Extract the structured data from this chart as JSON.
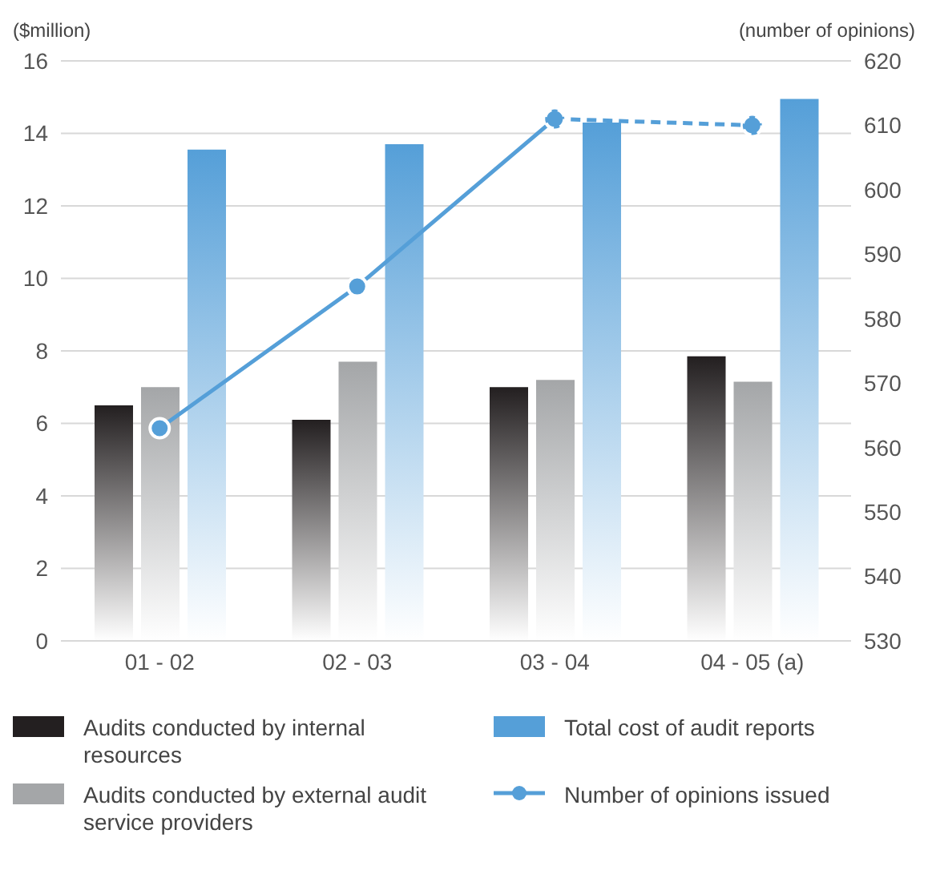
{
  "chart_data": {
    "type": "bar",
    "ylabel": "($million)",
    "y2label": "(number of opinions)",
    "categories": [
      "01 - 02",
      "02 - 03",
      "03 - 04",
      "04 - 05 (a)"
    ],
    "series": [
      {
        "name": "Audits conducted by internal resources",
        "color": "#231f20",
        "values": [
          6.5,
          6.1,
          7.0,
          7.85
        ]
      },
      {
        "name": "Audits conducted by external audit service providers",
        "color": "#a4a6a8",
        "values": [
          7.0,
          7.7,
          7.2,
          7.15
        ]
      },
      {
        "name": "Total cost of audit reports",
        "color": "#559fd8",
        "values": [
          13.55,
          13.7,
          14.3,
          14.95
        ]
      },
      {
        "name": "Number of opinions issued",
        "type": "line",
        "axis": "y2",
        "color": "#559fd8",
        "line_style": "solid",
        "marker": "circle",
        "values": [
          563,
          585,
          611,
          null
        ]
      },
      {
        "type": "line",
        "axis": "y2",
        "color": "#559fd8",
        "line_style": "dashed",
        "marker": "circle",
        "values": [
          null,
          null,
          611,
          610
        ]
      }
    ],
    "ylim": [
      0,
      16
    ],
    "yticks": [
      0,
      2,
      4,
      6,
      8,
      10,
      12,
      14,
      16
    ],
    "y2lim": [
      530,
      620
    ],
    "y2ticks": [
      530,
      540,
      550,
      560,
      570,
      580,
      590,
      600,
      610,
      620
    ],
    "grid": "y",
    "legend": "bottom"
  }
}
